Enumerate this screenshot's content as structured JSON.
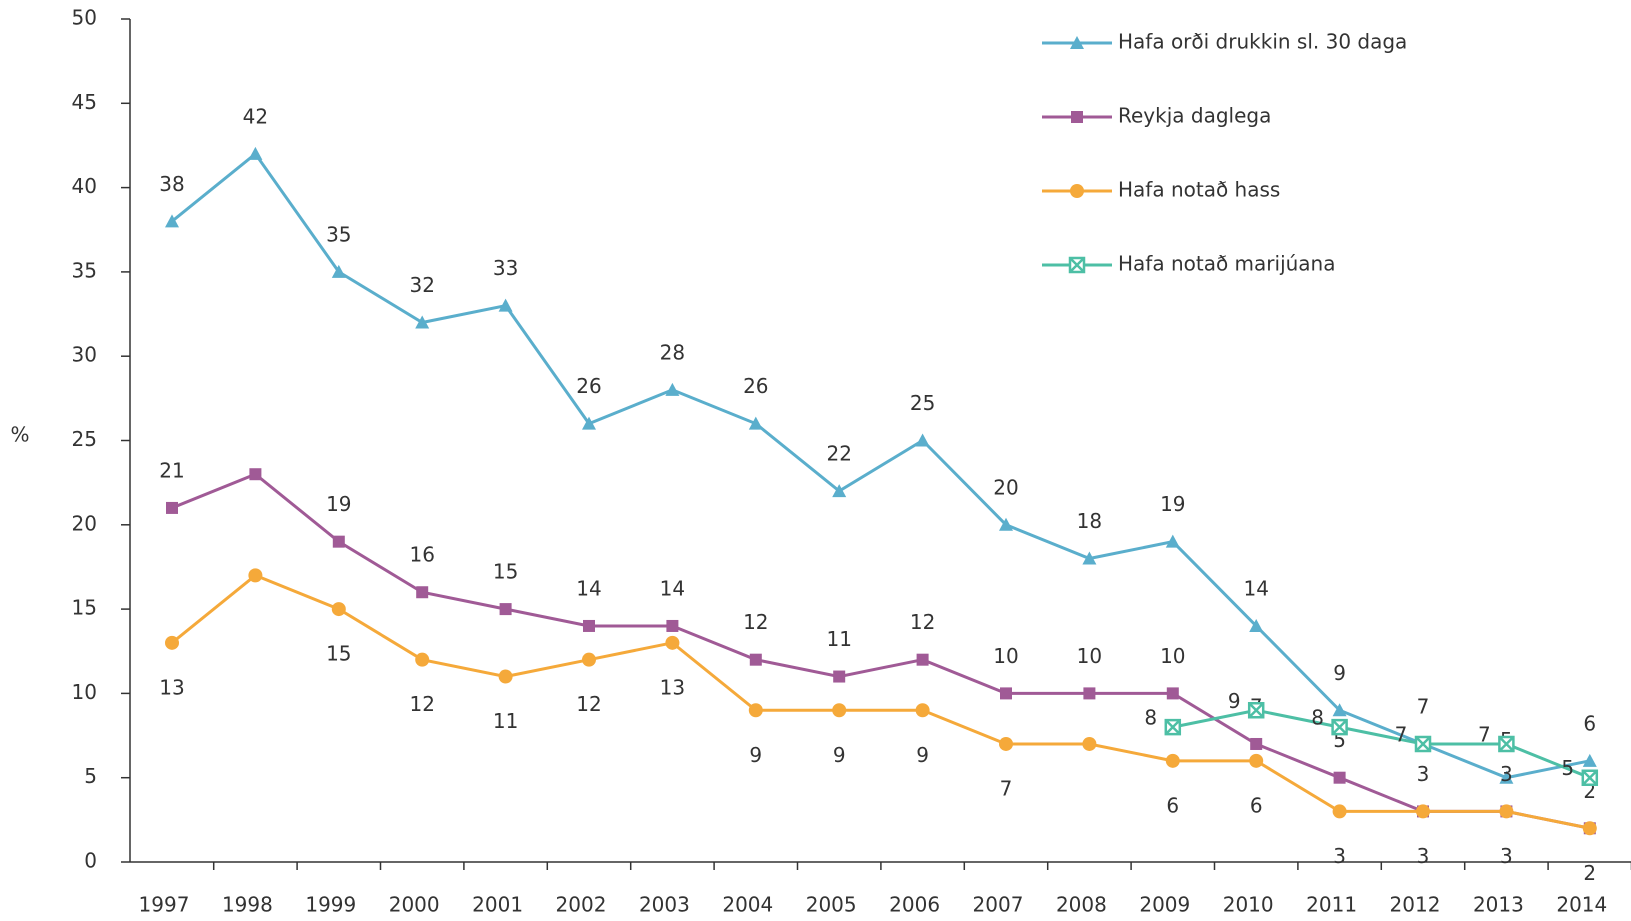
{
  "chart_data": {
    "type": "line",
    "y_label": "%",
    "categories": [
      "1997",
      "1998",
      "1999",
      "2000",
      "2001",
      "2002",
      "2003",
      "2004",
      "2005",
      "2006",
      "2007",
      "2008",
      "2009",
      "2010",
      "2011",
      "2012",
      "2013",
      "2014"
    ],
    "ylim": [
      0,
      50
    ],
    "yticks": [
      0,
      5,
      10,
      15,
      20,
      25,
      30,
      35,
      40,
      45,
      50
    ],
    "grid": false,
    "series": [
      {
        "name": "Hafa orði drukkin sl. 30 daga",
        "color": "#5aaecc",
        "marker": "triangle",
        "values": [
          38,
          42,
          35,
          32,
          33,
          26,
          28,
          26,
          22,
          25,
          20,
          18,
          19,
          14,
          9,
          7,
          5,
          6
        ]
      },
      {
        "name": "Reykja daglega",
        "color": "#a05a96",
        "marker": "square",
        "values": [
          21,
          23,
          19,
          16,
          15,
          14,
          14,
          12,
          11,
          12,
          10,
          10,
          10,
          7,
          5,
          3,
          3,
          2
        ],
        "value_labels": [
          "21",
          null,
          "19",
          "16",
          "15",
          "14",
          "14",
          "12",
          "11",
          "12",
          "10",
          "10",
          "10",
          "7",
          "5",
          "3",
          "3",
          "2"
        ]
      },
      {
        "name": "Hafa notað hass",
        "color": "#f5a93a",
        "marker": "circle",
        "values": [
          13,
          17,
          15,
          12,
          11,
          12,
          13,
          9,
          9,
          9,
          7,
          7,
          6,
          6,
          3,
          3,
          3,
          2
        ],
        "value_labels": [
          "13",
          null,
          "15",
          "12",
          "11",
          "12",
          "13",
          "9",
          "9",
          "9",
          "7",
          null,
          "6",
          "6",
          "3",
          "3",
          "3",
          "2"
        ]
      },
      {
        "name": "Hafa notað marijúana",
        "color": "#4dbfa5",
        "marker": "x-square",
        "values": [
          null,
          null,
          null,
          null,
          null,
          null,
          null,
          null,
          null,
          null,
          null,
          null,
          8,
          9,
          8,
          7,
          7,
          5
        ]
      }
    ]
  }
}
